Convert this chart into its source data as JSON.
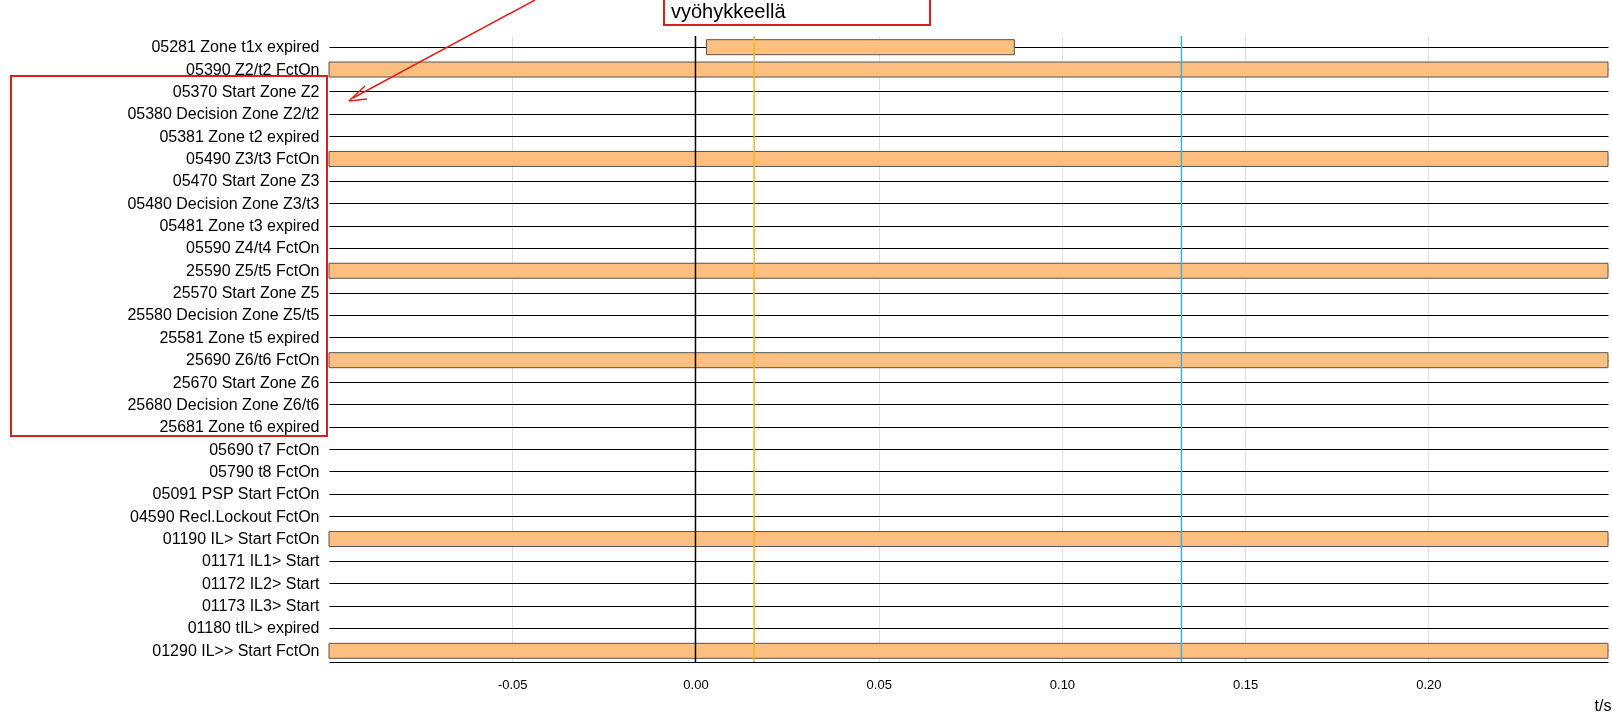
{
  "chart_data": {
    "type": "bar",
    "orientation": "horizontal",
    "categories": [
      "05281 Zone t1x expired",
      "05390 Z2/t2 FctOn",
      "05370 Start Zone Z2",
      "05380 Decision Zone Z2/t2",
      "05381 Zone t2 expired",
      "05490 Z3/t3 FctOn",
      "05470 Start Zone Z3",
      "05480 Decision Zone Z3/t3",
      "05481 Zone t3 expired",
      "05590 Z4/t4 FctOn",
      "25590 Z5/t5 FctOn",
      "25570 Start Zone Z5",
      "25580 Decision Zone Z5/t5",
      "25581 Zone t5 expired",
      "25690 Z6/t6 FctOn",
      "25670 Start Zone Z6",
      "25680 Decision Zone Z6/t6",
      "25681 Zone t6 expired",
      "05690 t7 FctOn",
      "05790 t8 FctOn",
      "05091 PSP Start FctOn",
      "04590 Recl.Lockout FctOn",
      "01190 IL> Start FctOn",
      "01171 IL1> Start",
      "01172 IL2> Start",
      "01173 IL3> Start",
      "01180 tIL> expired",
      "01290 IL>> Start FctOn"
    ],
    "base": [
      0.003,
      -0.1,
      null,
      null,
      null,
      -0.1,
      null,
      null,
      null,
      null,
      -0.1,
      null,
      null,
      null,
      -0.1,
      null,
      null,
      null,
      null,
      null,
      null,
      null,
      -0.1,
      null,
      null,
      null,
      null,
      -0.1
    ],
    "values": [
      0.084,
      0.349,
      null,
      null,
      null,
      0.349,
      null,
      null,
      null,
      null,
      0.349,
      null,
      null,
      null,
      0.349,
      null,
      null,
      null,
      null,
      null,
      null,
      null,
      0.349,
      null,
      null,
      null,
      null,
      0.349
    ],
    "color": "#ffbf80",
    "xlabel": "t/s",
    "xlim": [
      -0.1,
      0.249
    ],
    "xticks": [
      {
        "value": -0.05,
        "label": "-0.05"
      },
      {
        "value": 0,
        "label": "0.00"
      },
      {
        "value": 0.05,
        "label": "0.05"
      },
      {
        "value": 0.1,
        "label": "0.10"
      },
      {
        "value": 0.15,
        "label": "0.15"
      },
      {
        "value": 0.2,
        "label": "0.20"
      }
    ],
    "grid": true,
    "ref_lines": [
      {
        "axis": "x",
        "value": 0,
        "color": "#000000"
      },
      {
        "axis": "x",
        "value": 0.016,
        "color": "#f5b51e"
      },
      {
        "axis": "x",
        "value": 0.1326,
        "color": "#3ab4d9"
      }
    ],
    "annotations": [
      "vyöhykkeellä"
    ]
  }
}
